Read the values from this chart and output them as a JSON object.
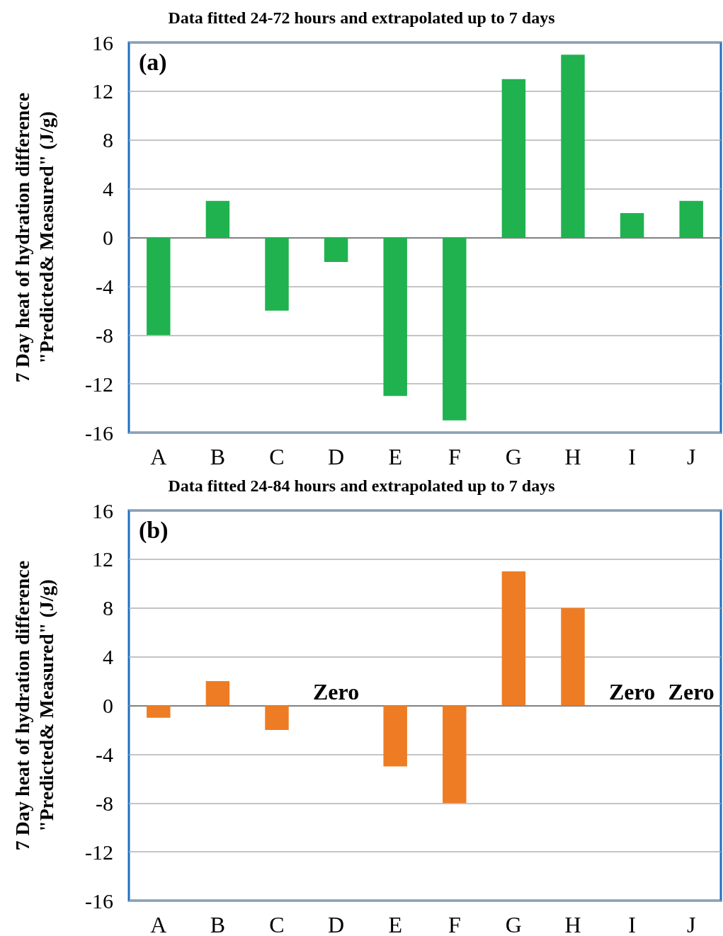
{
  "chart_data": [
    {
      "type": "bar",
      "title": "Data fitted 24-72 hours and extrapolated up to 7 days",
      "ylabel": "7 Day heat of hydration difference\n\"Predicted& Measured\" (J/g)",
      "annotations": [
        "(a)"
      ],
      "categories": [
        "A",
        "B",
        "C",
        "D",
        "E",
        "F",
        "G",
        "H",
        "I",
        "J"
      ],
      "values": [
        -8,
        3,
        -6,
        -2,
        -13,
        -15,
        13,
        15,
        2,
        3
      ],
      "color": "#1fb24f",
      "ylim": [
        -16,
        16
      ],
      "yticks": [
        -16,
        -12,
        -8,
        -4,
        0,
        4,
        8,
        12,
        16
      ],
      "grid": "y"
    },
    {
      "type": "bar",
      "title": "Data fitted 24-84 hours and extrapolated up to 7 days",
      "ylabel": "7 Day heat of hydration difference\n\"Predicted& Measured\" (J/g)",
      "annotations": [
        "(b)",
        {
          "text": "Zero",
          "x": "D",
          "y": 0
        },
        {
          "text": "Zero",
          "x": "I",
          "y": 0
        },
        {
          "text": "Zero",
          "x": "J",
          "y": 0
        }
      ],
      "categories": [
        "A",
        "B",
        "C",
        "D",
        "E",
        "F",
        "G",
        "H",
        "I",
        "J"
      ],
      "values": [
        -1,
        2,
        -2,
        0,
        -5,
        -8,
        11,
        8,
        0,
        0
      ],
      "color": "#ee7c24",
      "ylim": [
        -16,
        16
      ],
      "yticks": [
        -16,
        -12,
        -8,
        -4,
        0,
        4,
        8,
        12,
        16
      ],
      "grid": "y"
    }
  ]
}
